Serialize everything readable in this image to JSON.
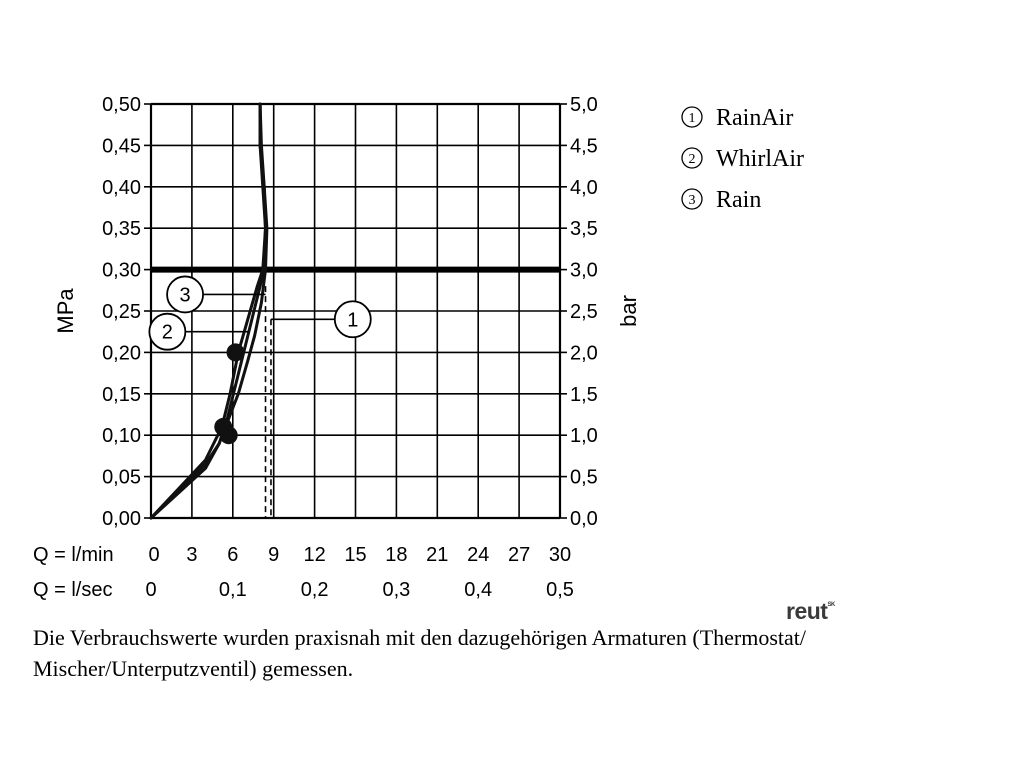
{
  "chart_data": {
    "type": "line",
    "left_axis": {
      "label": "MPa",
      "range": [
        0,
        0.5
      ],
      "ticks": [
        "0,00",
        "0,05",
        "0,10",
        "0,15",
        "0,20",
        "0,25",
        "0,30",
        "0,35",
        "0,40",
        "0,45",
        "0,50"
      ]
    },
    "right_axis": {
      "label": "bar",
      "range": [
        0,
        5
      ],
      "ticks": [
        "0,0",
        "0,5",
        "1,0",
        "1,5",
        "2,0",
        "2,5",
        "3,0",
        "3,5",
        "4,0",
        "4,5",
        "5,0"
      ]
    },
    "x_axis_rows": [
      {
        "label": "Q = l/min",
        "range": [
          0,
          30
        ],
        "ticks": [
          "0",
          "3",
          "6",
          "9",
          "12",
          "15",
          "18",
          "21",
          "24",
          "27",
          "30"
        ]
      },
      {
        "label": "Q = l/sec",
        "range": [
          0,
          0.5
        ],
        "ticks": [
          "0",
          "0,1",
          "0,2",
          "0,3",
          "0,4",
          "0,5"
        ]
      }
    ],
    "grid": true,
    "reference_line": {
      "y": 0.3
    },
    "series": [
      {
        "id": "1",
        "points": [
          [
            0,
            0
          ],
          [
            2,
            0.03
          ],
          [
            4,
            0.06
          ],
          [
            5,
            0.09
          ],
          [
            5.7,
            0.12
          ],
          [
            6.4,
            0.15
          ],
          [
            7.1,
            0.19
          ],
          [
            7.6,
            0.22
          ],
          [
            8.1,
            0.26
          ],
          [
            8.4,
            0.3
          ],
          [
            8.5,
            0.35
          ],
          [
            8.3,
            0.4
          ],
          [
            8.0,
            0.45
          ],
          [
            8.0,
            0.5
          ]
        ],
        "dropline_x": 8.8,
        "dropline_y": 0.24
      },
      {
        "id": "2",
        "points": [
          [
            0,
            0
          ],
          [
            2,
            0.032
          ],
          [
            4,
            0.065
          ],
          [
            5,
            0.09
          ],
          [
            5.6,
            0.12
          ],
          [
            6.2,
            0.16
          ],
          [
            6.8,
            0.2
          ],
          [
            7.4,
            0.24
          ],
          [
            8.0,
            0.28
          ],
          [
            8.3,
            0.3
          ],
          [
            8.4,
            0.35
          ],
          [
            8.2,
            0.4
          ],
          [
            8.0,
            0.45
          ],
          [
            8.0,
            0.5
          ]
        ],
        "dropline_y": 0.225
      },
      {
        "id": "3",
        "points": [
          [
            0,
            0
          ],
          [
            2,
            0.035
          ],
          [
            4,
            0.07
          ],
          [
            5.2,
            0.11
          ],
          [
            5.8,
            0.15
          ],
          [
            6.4,
            0.2
          ],
          [
            7.1,
            0.24
          ],
          [
            7.8,
            0.28
          ],
          [
            8.2,
            0.3
          ],
          [
            8.4,
            0.35
          ],
          [
            8.3,
            0.4
          ],
          [
            8.1,
            0.45
          ],
          [
            8.0,
            0.5
          ]
        ],
        "dropline_x": 8.4,
        "dropline_y": 0.28
      }
    ],
    "markers": [
      {
        "x": 5.3,
        "y": 0.11
      },
      {
        "x": 5.7,
        "y": 0.1
      },
      {
        "x": 6.2,
        "y": 0.2
      }
    ],
    "badges": [
      {
        "id": "1",
        "x": 14.8,
        "y": 0.24
      },
      {
        "id": "2",
        "x": 1.2,
        "y": 0.225
      },
      {
        "id": "3",
        "x": 2.5,
        "y": 0.27
      }
    ],
    "legend": {
      "placement": "top-right",
      "entries": [
        {
          "id": "1",
          "label": "RainAir"
        },
        {
          "id": "2",
          "label": "WhirlAir"
        },
        {
          "id": "3",
          "label": "Rain"
        }
      ]
    }
  },
  "caption": {
    "line1": "Die Verbrauchswerte wurden praxisnah mit den dazugehörigen Armaturen (Thermostat/",
    "line2": "Mischer/Unterputzventil) gemessen."
  },
  "brand": {
    "text": "reut",
    "sup": "SK"
  }
}
